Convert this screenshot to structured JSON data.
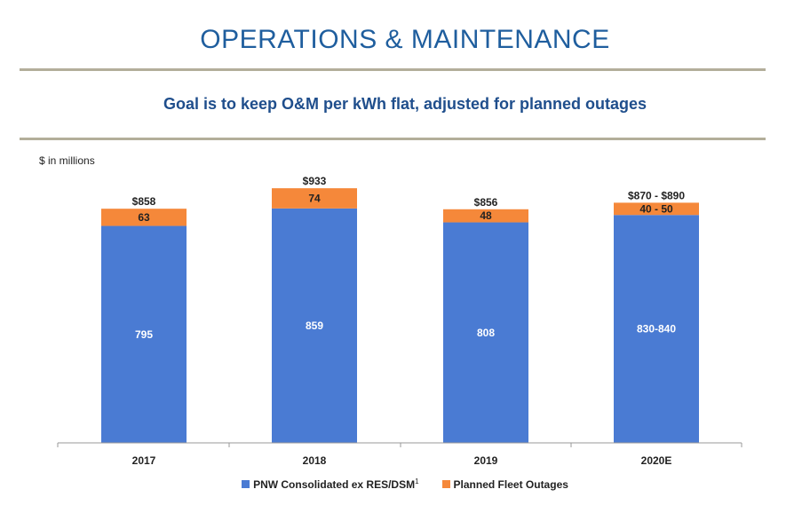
{
  "header": {
    "title": "OPERATIONS & MAINTENANCE",
    "subtitle": "Goal is to keep O&M per kWh flat, adjusted for planned outages",
    "units": "$ in millions"
  },
  "colors": {
    "base": "#4a7bd3",
    "outage": "#f5883a",
    "title": "#1f5e9e",
    "rule": "#b3ae9a"
  },
  "chart_data": {
    "type": "bar",
    "stacked": true,
    "categories": [
      "2017",
      "2018",
      "2019",
      "2020E"
    ],
    "series": [
      {
        "name": "PNW Consolidated ex RES/DSM",
        "name_superscript": "1",
        "values": [
          795,
          859,
          808,
          835
        ],
        "labels": [
          "795",
          "859",
          "808",
          "830-840"
        ]
      },
      {
        "name": "Planned Fleet Outages",
        "values": [
          63,
          74,
          48,
          45
        ],
        "labels": [
          "63",
          "74",
          "48",
          "40 - 50"
        ]
      }
    ],
    "totals": [
      "$858",
      "$933",
      "$856",
      "$870 - $890"
    ],
    "ylim": [
      0,
      950
    ],
    "grid": false,
    "legend": "bottom-center"
  }
}
